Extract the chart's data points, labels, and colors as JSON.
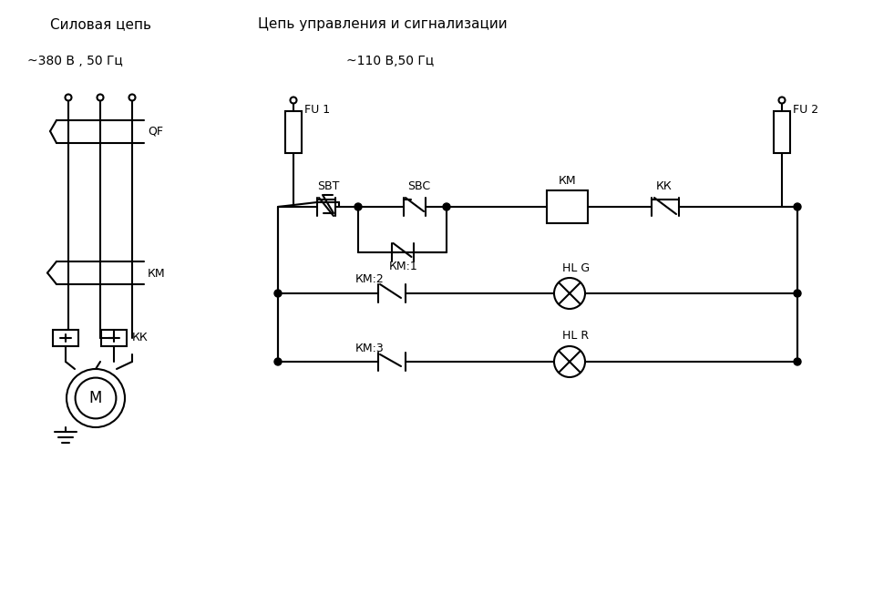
{
  "title_left": "Силовая цепь",
  "title_right": "Цепь управления и сигнализации",
  "subtitle_left": "~380 В , 50 Гц",
  "subtitle_right": "~110 В,50 Гц",
  "bg_color": "#ffffff",
  "line_color": "#000000",
  "text_color": "#000000",
  "fig_width": 9.81,
  "fig_height": 6.52,
  "font_size": 9
}
